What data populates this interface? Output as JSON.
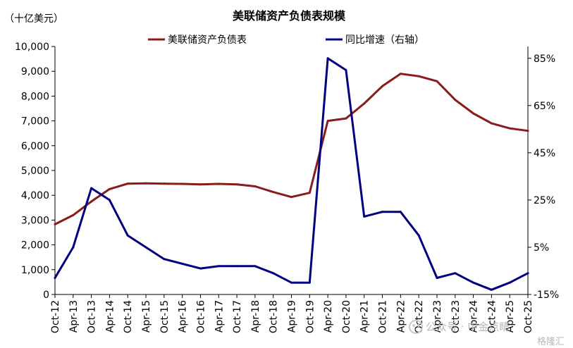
{
  "chart_data": {
    "type": "line",
    "title": "美联储资产负债表规模",
    "unit_label": "（十亿美元）",
    "grid": false,
    "legend_position": "top",
    "categories": [
      "Oct-12",
      "Apr-13",
      "Oct-13",
      "Apr-14",
      "Oct-14",
      "Apr-15",
      "Oct-15",
      "Apr-16",
      "Oct-16",
      "Apr-17",
      "Oct-17",
      "Apr-18",
      "Oct-18",
      "Apr-19",
      "Oct-19",
      "Apr-20",
      "Oct-20",
      "Apr-21",
      "Oct-21",
      "Apr-22",
      "Oct-22",
      "Apr-23",
      "Oct-23",
      "Apr-24",
      "Oct-24",
      "Apr-25",
      "Oct-25"
    ],
    "y_left": {
      "ticks": [
        "0",
        "1,000",
        "2,000",
        "3,000",
        "4,000",
        "5,000",
        "6,000",
        "7,000",
        "8,000",
        "9,000",
        "10,000"
      ],
      "ylim": [
        0,
        10000
      ]
    },
    "y_right": {
      "ticks": [
        "-15%",
        "5%",
        "25%",
        "45%",
        "65%",
        "85%"
      ],
      "ylim": [
        -15,
        90
      ]
    },
    "series": [
      {
        "name": "美联储资产负债表",
        "axis": "left",
        "color": "#8b1a1a",
        "values": [
          2830,
          3200,
          3750,
          4250,
          4470,
          4480,
          4470,
          4460,
          4440,
          4460,
          4440,
          4360,
          4130,
          3930,
          4100,
          7000,
          7100,
          7700,
          8400,
          8900,
          8800,
          8600,
          7850,
          7300,
          6900,
          6700,
          6600
        ]
      },
      {
        "name": "同比增速（右轴）",
        "axis": "right",
        "color": "#000080",
        "values": [
          -8,
          5,
          30,
          25,
          10,
          5,
          0,
          -2,
          -4,
          -3,
          -3,
          -3,
          -6,
          -10,
          -10,
          85,
          80,
          18,
          20,
          20,
          10,
          -8,
          -6,
          -10,
          -13,
          -10,
          -6
        ]
      }
    ]
  },
  "watermark": {
    "line1": "公众号 · 中金点睛",
    "line2": "格隆汇"
  }
}
